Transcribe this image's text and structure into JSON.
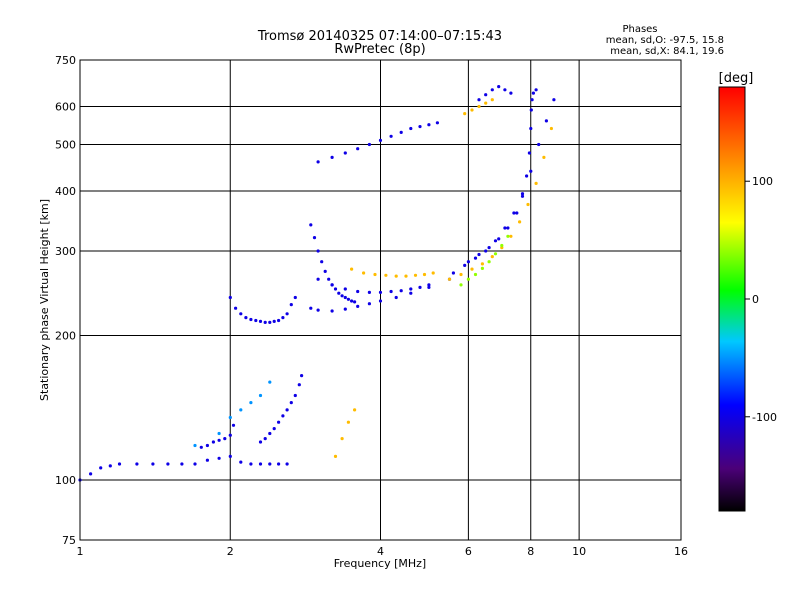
{
  "chart_data": {
    "type": "scatter",
    "title": "Tromsø 20140325 07:14:00–07:15:43",
    "subtitle": "RwPretec (8p)",
    "xlabel": "Frequency [MHz]",
    "ylabel": "Stationary phase Virtual Height [km]",
    "x_scale": "log2",
    "y_scale": "log",
    "xlim": [
      1,
      16
    ],
    "ylim": [
      75,
      750
    ],
    "x_ticks": [
      1,
      2,
      4,
      6,
      8,
      10,
      16
    ],
    "x_tick_labels": [
      "1",
      "2",
      "4",
      "6",
      "8",
      "10",
      "16"
    ],
    "y_ticks": [
      75,
      100,
      200,
      300,
      400,
      500,
      600,
      750
    ],
    "y_tick_labels": [
      "75",
      "100",
      "200",
      "300",
      "400",
      "500",
      "600",
      "750"
    ],
    "grid": true,
    "stats": {
      "heading": "Phases",
      "line_o": "mean, sd,O: -97.5, 15.8",
      "line_x": "mean, sd,X:  84.1, 19.6"
    },
    "colorbar": {
      "label": "[deg]",
      "range": [
        -180,
        180
      ],
      "ticks": [
        100,
        0,
        -100
      ],
      "tick_labels": [
        "100",
        "0",
        "-100"
      ],
      "colormap": "rainbow"
    },
    "series": [
      {
        "phase": -100,
        "traces": [
          {
            "x": [
              1.0,
              1.05,
              1.1,
              1.15,
              1.2,
              1.3,
              1.4,
              1.5,
              1.6,
              1.7,
              1.8,
              1.9,
              2.0,
              2.1,
              2.2,
              2.3,
              2.4,
              2.5,
              2.6
            ],
            "y": [
              100,
              103,
              106,
              107,
              108,
              108,
              108,
              108,
              108,
              108,
              110,
              111,
              112,
              109,
              108,
              108,
              108,
              108,
              108
            ]
          },
          {
            "x": [
              1.75,
              1.8,
              1.85,
              1.9,
              1.95,
              2.0,
              2.03
            ],
            "y": [
              117,
              118,
              120,
              121,
              122,
              124,
              130
            ]
          },
          {
            "x": [
              2.3,
              2.35,
              2.4,
              2.45,
              2.5,
              2.55,
              2.6,
              2.65,
              2.7,
              2.75,
              2.78
            ],
            "y": [
              120,
              122,
              125,
              128,
              132,
              136,
              140,
              145,
              150,
              158,
              165
            ]
          },
          {
            "x": [
              2.0,
              2.05,
              2.1,
              2.15,
              2.2,
              2.25,
              2.3,
              2.35,
              2.4,
              2.45,
              2.5,
              2.55,
              2.6,
              2.65,
              2.7
            ],
            "y": [
              240,
              228,
              222,
              218,
              216,
              215,
              214,
              213,
              213,
              214,
              215,
              218,
              222,
              232,
              240
            ]
          },
          {
            "x": [
              2.9,
              2.95,
              3.0,
              3.05,
              3.1,
              3.15,
              3.2,
              3.25,
              3.3,
              3.35,
              3.4,
              3.45,
              3.5,
              3.55
            ],
            "y": [
              340,
              320,
              300,
              285,
              272,
              262,
              255,
              250,
              245,
              242,
              240,
              238,
              236,
              235
            ]
          },
          {
            "x": [
              2.9,
              3.0,
              3.2,
              3.4,
              3.6,
              3.8,
              4.0,
              4.3,
              4.6,
              5.0,
              5.5
            ],
            "y": [
              228,
              226,
              225,
              227,
              230,
              233,
              236,
              240,
              245,
              252,
              262
            ]
          },
          {
            "x": [
              3.0,
              3.2,
              3.4,
              3.6,
              3.8,
              4.0,
              4.2,
              4.4,
              4.6,
              4.8,
              5.0
            ],
            "y": [
              262,
              255,
              250,
              247,
              246,
              246,
              247,
              248,
              250,
              252,
              255
            ]
          },
          {
            "x": [
              6.0,
              6.3,
              6.6,
              6.9,
              7.2,
              7.5,
              7.7,
              7.85,
              7.95,
              8.0,
              8.02,
              8.05,
              8.1,
              8.2
            ],
            "y": [
              285,
              295,
              305,
              318,
              335,
              360,
              390,
              430,
              480,
              540,
              590,
              620,
              640,
              650
            ]
          },
          {
            "x": [
              5.6,
              5.9,
              6.2,
              6.5,
              6.8,
              7.1,
              7.4,
              7.7,
              8.0,
              8.3,
              8.6,
              8.9
            ],
            "y": [
              270,
              280,
              290,
              300,
              315,
              335,
              360,
              395,
              440,
              500,
              560,
              620
            ]
          },
          {
            "x": [
              3.0,
              3.2,
              3.4,
              3.6,
              3.8,
              4.0,
              4.2,
              4.4,
              4.6,
              4.8,
              5.0,
              5.2
            ],
            "y": [
              460,
              470,
              480,
              490,
              500,
              510,
              520,
              530,
              540,
              545,
              550,
              555
            ]
          },
          {
            "x": [
              6.3,
              6.5,
              6.7,
              6.9,
              7.1,
              7.3
            ],
            "y": [
              620,
              635,
              650,
              660,
              650,
              640
            ]
          }
        ]
      },
      {
        "phase": 95,
        "traces": [
          {
            "x": [
              3.5,
              3.7,
              3.9,
              4.1,
              4.3,
              4.5,
              4.7,
              4.9,
              5.1
            ],
            "y": [
              275,
              270,
              268,
              267,
              266,
              266,
              267,
              268,
              270
            ]
          },
          {
            "x": [
              5.5,
              5.8,
              6.1,
              6.4,
              6.7,
              7.0,
              7.3,
              7.6,
              7.9,
              8.2,
              8.5,
              8.8
            ],
            "y": [
              262,
              268,
              275,
              282,
              292,
              305,
              322,
              345,
              375,
              415,
              470,
              540
            ]
          },
          {
            "x": [
              3.25,
              3.35,
              3.45,
              3.55
            ],
            "y": [
              112,
              122,
              132,
              140
            ]
          },
          {
            "x": [
              5.9,
              6.1,
              6.3,
              6.5,
              6.7
            ],
            "y": [
              580,
              590,
              600,
              610,
              620
            ]
          }
        ]
      },
      {
        "phase": 40,
        "traces": [
          {
            "x": [
              5.8,
              6.0,
              6.2,
              6.4,
              6.6,
              6.8,
              7.0,
              7.2
            ],
            "y": [
              255,
              262,
              268,
              276,
              285,
              296,
              308,
              322
            ]
          }
        ]
      },
      {
        "phase": -50,
        "traces": [
          {
            "x": [
              1.7,
              1.9,
              2.0,
              2.1,
              2.2,
              2.3,
              2.4
            ],
            "y": [
              118,
              125,
              135,
              140,
              145,
              150,
              160
            ]
          }
        ]
      }
    ]
  }
}
